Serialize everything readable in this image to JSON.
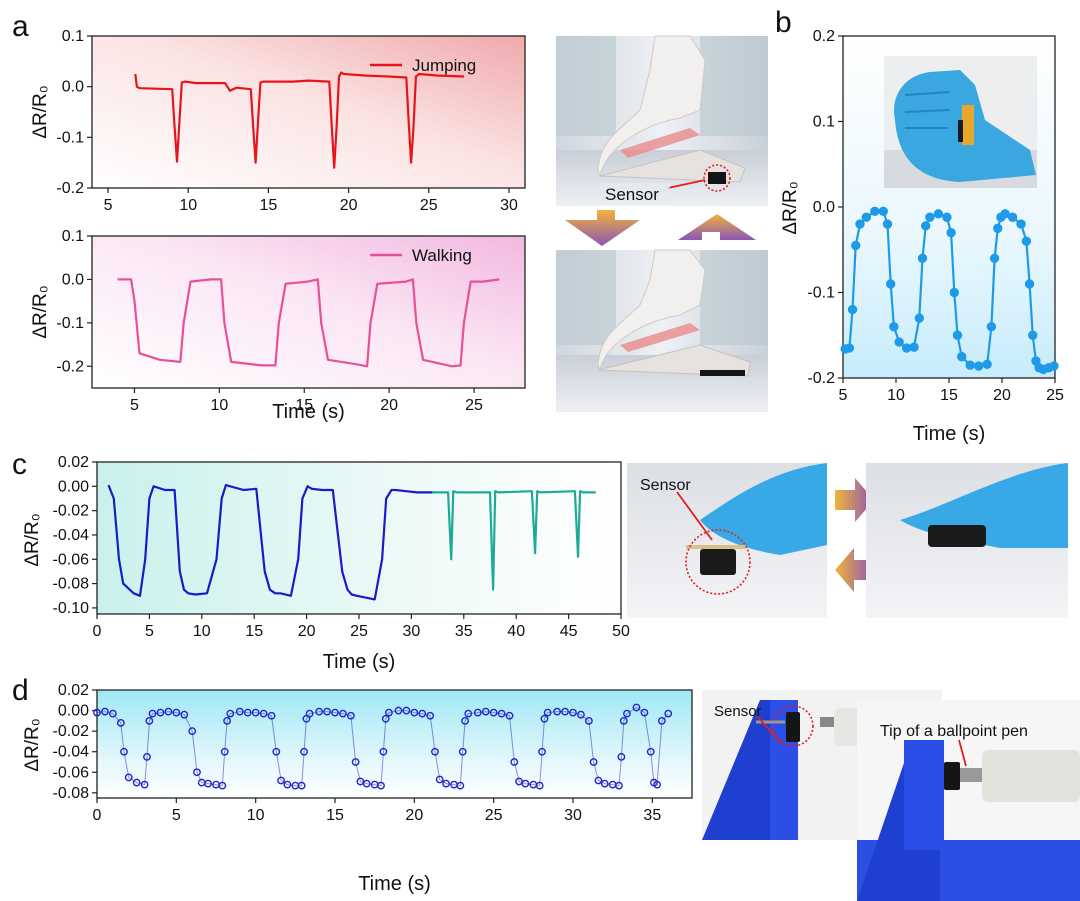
{
  "panels": {
    "a": {
      "letter": "a"
    },
    "b": {
      "letter": "b"
    },
    "c": {
      "letter": "c"
    },
    "d": {
      "letter": "d"
    }
  },
  "photo_labels": {
    "a_sensor": "Sensor",
    "c_sensor": "Sensor",
    "d_sensor": "Sensor",
    "d_pen": "Tip of a ballpoint pen"
  },
  "colors": {
    "jumping": "#e8141c",
    "walking": "#e8509a",
    "hand": "#1e9be8",
    "press": "#1a1ac8",
    "tap": "#1fa99a",
    "pen": "#2323c8"
  },
  "chart_data": [
    {
      "id": "a-top",
      "type": "line",
      "ylabel": "ΔR/R₀",
      "xlim": [
        4,
        31
      ],
      "ylim": [
        -0.2,
        0.1
      ],
      "xticks": [
        5,
        10,
        15,
        20,
        25,
        30
      ],
      "yticks": [
        0.1,
        0.0,
        -0.1,
        -0.2
      ],
      "ytick_labels": [
        "0.1",
        "0.0",
        "-0.1",
        "-0.2"
      ],
      "legend": [
        "Jumping"
      ],
      "series": [
        {
          "name": "Jumping",
          "color": "#e8141c",
          "x": [
            6.7,
            6.8,
            7.0,
            9.0,
            9.15,
            9.3,
            9.45,
            9.6,
            9.8,
            10.5,
            12.3,
            12.6,
            13.0,
            13.9,
            14.05,
            14.2,
            14.35,
            14.5,
            14.7,
            16.5,
            17.5,
            18.8,
            18.95,
            19.1,
            19.25,
            19.4,
            19.55,
            19.7,
            21.0,
            22.5,
            23.6,
            23.75,
            23.9,
            24.05,
            24.2,
            24.4,
            25.5,
            27.2
          ],
          "y": [
            0.025,
            0.0,
            -0.003,
            -0.005,
            -0.08,
            -0.148,
            -0.07,
            0.008,
            0.01,
            0.007,
            0.007,
            -0.008,
            -0.002,
            -0.005,
            -0.08,
            -0.15,
            -0.07,
            0.008,
            0.01,
            0.01,
            0.012,
            0.01,
            -0.08,
            -0.16,
            -0.08,
            0.02,
            0.028,
            0.025,
            0.022,
            0.02,
            0.018,
            -0.07,
            -0.15,
            -0.08,
            0.02,
            0.025,
            0.022,
            0.02
          ]
        }
      ]
    },
    {
      "id": "a-bottom",
      "type": "line",
      "xlabel": "Time (s)",
      "ylabel": "ΔR/R₀",
      "xlim": [
        2.5,
        28
      ],
      "ylim": [
        -0.25,
        0.1
      ],
      "xticks": [
        5,
        10,
        15,
        20,
        25
      ],
      "yticks": [
        0.1,
        0.0,
        -0.1,
        -0.2
      ],
      "ytick_labels": [
        "0.1",
        "0.0",
        "-0.1",
        "-0.2"
      ],
      "legend": [
        "Walking"
      ],
      "series": [
        {
          "name": "Walking",
          "color": "#e8509a",
          "x": [
            4.0,
            4.8,
            5.0,
            5.3,
            6.5,
            7.7,
            7.9,
            8.3,
            9.5,
            10.1,
            10.3,
            10.7,
            12.5,
            13.3,
            13.5,
            13.9,
            15.2,
            15.8,
            16.0,
            16.4,
            18.0,
            18.7,
            18.9,
            19.3,
            21.0,
            21.4,
            21.6,
            22.0,
            23.7,
            24.2,
            24.4,
            24.8,
            25.5,
            26.5
          ],
          "y": [
            0.0,
            0.0,
            -0.05,
            -0.17,
            -0.185,
            -0.19,
            -0.1,
            -0.005,
            0.0,
            0.0,
            -0.1,
            -0.19,
            -0.198,
            -0.198,
            -0.1,
            -0.01,
            -0.005,
            0.0,
            -0.1,
            -0.185,
            -0.195,
            -0.2,
            -0.1,
            -0.01,
            -0.005,
            0.0,
            -0.1,
            -0.185,
            -0.2,
            -0.198,
            -0.1,
            -0.005,
            -0.005,
            0.0
          ]
        }
      ]
    },
    {
      "id": "b",
      "type": "line",
      "xlabel": "Time (s)",
      "ylabel": "ΔR/R₀",
      "xlim": [
        5,
        25
      ],
      "ylim": [
        -0.2,
        0.2
      ],
      "xticks": [
        5,
        10,
        15,
        20,
        25
      ],
      "yticks": [
        0.2,
        0.1,
        0.0,
        -0.1,
        -0.2
      ],
      "ytick_labels": [
        "0.2",
        "0.1",
        "0.0",
        "-0.1",
        "-0.2"
      ],
      "series": [
        {
          "name": "",
          "color": "#1e9be8",
          "x": [
            5.2,
            5.6,
            5.9,
            6.2,
            6.6,
            7.2,
            8.0,
            8.8,
            9.2,
            9.5,
            9.8,
            10.3,
            11.0,
            11.7,
            12.2,
            12.5,
            12.8,
            13.2,
            14.0,
            14.8,
            15.2,
            15.5,
            15.8,
            16.2,
            17.0,
            17.8,
            18.6,
            19.0,
            19.3,
            19.6,
            19.9,
            20.3,
            21.0,
            21.8,
            22.3,
            22.6,
            22.9,
            23.2,
            23.5,
            23.9,
            24.4,
            24.9
          ],
          "y": [
            -0.166,
            -0.165,
            -0.12,
            -0.045,
            -0.02,
            -0.012,
            -0.005,
            -0.005,
            -0.02,
            -0.09,
            -0.14,
            -0.158,
            -0.165,
            -0.164,
            -0.13,
            -0.06,
            -0.022,
            -0.012,
            -0.008,
            -0.012,
            -0.03,
            -0.1,
            -0.15,
            -0.175,
            -0.185,
            -0.186,
            -0.184,
            -0.14,
            -0.06,
            -0.025,
            -0.012,
            -0.008,
            -0.012,
            -0.02,
            -0.04,
            -0.09,
            -0.15,
            -0.18,
            -0.188,
            -0.19,
            -0.188,
            -0.186
          ]
        }
      ]
    },
    {
      "id": "c",
      "type": "line",
      "xlabel": "Time (s)",
      "ylabel": "ΔR/R₀",
      "xlim": [
        0,
        50
      ],
      "ylim": [
        -0.105,
        0.02
      ],
      "xticks": [
        0,
        5,
        10,
        15,
        20,
        25,
        30,
        35,
        40,
        45,
        50
      ],
      "yticks": [
        0.02,
        0.0,
        -0.02,
        -0.04,
        -0.06,
        -0.08,
        -0.1
      ],
      "ytick_labels": [
        "0.02",
        "0.00",
        "-0.02",
        "-0.04",
        "-0.06",
        "-0.08",
        "-0.10"
      ],
      "series": [
        {
          "name": "",
          "color": "#1a1ac8",
          "x": [
            1.1,
            1.6,
            2.1,
            2.5,
            3.5,
            4.1,
            4.6,
            5.0,
            5.4,
            6.5,
            7.4,
            7.9,
            8.3,
            8.7,
            9.4,
            10.5,
            11.4,
            11.9,
            12.3,
            12.7,
            14.0,
            15.2,
            16.0,
            16.5,
            17.0,
            17.5,
            18.5,
            19.2,
            19.6,
            20.1,
            20.5,
            21.5,
            22.5,
            23.4,
            23.9,
            24.3,
            24.8,
            26.5,
            27.2,
            27.6,
            28.1,
            28.5,
            29.5,
            30.5,
            32.0
          ],
          "y": [
            0.001,
            -0.01,
            -0.06,
            -0.08,
            -0.088,
            -0.09,
            -0.06,
            -0.01,
            0.0,
            -0.003,
            -0.003,
            -0.07,
            -0.085,
            -0.088,
            -0.089,
            -0.088,
            -0.06,
            -0.01,
            0.001,
            0.0,
            -0.003,
            -0.002,
            -0.07,
            -0.085,
            -0.088,
            -0.088,
            -0.09,
            -0.06,
            -0.01,
            0.0,
            -0.002,
            -0.003,
            -0.003,
            -0.07,
            -0.085,
            -0.089,
            -0.09,
            -0.093,
            -0.06,
            -0.01,
            -0.003,
            -0.003,
            -0.004,
            -0.005,
            -0.005
          ]
        },
        {
          "name": "",
          "color": "#1fa99a",
          "x": [
            32.0,
            33.5,
            33.8,
            34.0,
            34.3,
            37.5,
            37.8,
            38.0,
            38.3,
            41.5,
            41.8,
            42.0,
            42.3,
            45.6,
            45.9,
            46.1,
            46.4,
            47.6
          ],
          "y": [
            -0.005,
            -0.005,
            -0.06,
            -0.004,
            -0.005,
            -0.005,
            -0.085,
            -0.004,
            -0.005,
            -0.004,
            -0.055,
            -0.004,
            -0.005,
            -0.004,
            -0.058,
            -0.004,
            -0.005,
            -0.005
          ]
        }
      ]
    },
    {
      "id": "d",
      "type": "scatter",
      "xlabel": "Time (s)",
      "ylabel": "ΔR/R₀",
      "xlim": [
        0,
        37.5
      ],
      "ylim": [
        -0.085,
        0.02
      ],
      "xticks": [
        0,
        5,
        10,
        15,
        20,
        25,
        30,
        35
      ],
      "yticks": [
        0.02,
        0.0,
        -0.02,
        -0.04,
        -0.06,
        -0.08
      ],
      "ytick_labels": [
        "0.02",
        "0.00",
        "-0.02",
        "-0.04",
        "-0.06",
        "-0.08"
      ],
      "series": [
        {
          "name": "",
          "color": "#2323c8",
          "x": [
            0.0,
            0.5,
            1.0,
            1.5,
            1.7,
            2.0,
            2.5,
            3.0,
            3.15,
            3.3,
            3.5,
            4.0,
            4.5,
            5.0,
            5.5,
            6.0,
            6.3,
            6.6,
            7.0,
            7.5,
            7.9,
            8.05,
            8.2,
            8.4,
            9.0,
            9.5,
            10.0,
            10.5,
            11.0,
            11.3,
            11.6,
            12.0,
            12.5,
            12.9,
            13.05,
            13.2,
            13.4,
            14.0,
            14.5,
            15.0,
            15.5,
            16.0,
            16.3,
            16.6,
            17.0,
            17.5,
            17.9,
            18.05,
            18.2,
            18.4,
            19.0,
            19.5,
            20.0,
            20.5,
            21.0,
            21.3,
            21.6,
            22.0,
            22.5,
            22.9,
            23.05,
            23.2,
            23.4,
            24.0,
            24.5,
            25.0,
            25.5,
            26.0,
            26.3,
            26.6,
            27.0,
            27.5,
            27.9,
            28.05,
            28.2,
            28.4,
            29.0,
            29.5,
            30.0,
            30.5,
            31.0,
            31.3,
            31.6,
            32.0,
            32.5,
            32.9,
            33.05,
            33.2,
            33.4,
            34.0,
            34.5,
            34.9,
            35.1,
            35.3,
            35.6,
            36.0
          ],
          "y": [
            -0.002,
            -0.001,
            -0.003,
            -0.012,
            -0.04,
            -0.065,
            -0.07,
            -0.072,
            -0.045,
            -0.01,
            -0.003,
            -0.002,
            -0.001,
            -0.002,
            -0.004,
            -0.02,
            -0.06,
            -0.07,
            -0.071,
            -0.072,
            -0.073,
            -0.04,
            -0.01,
            -0.003,
            -0.001,
            -0.002,
            -0.002,
            -0.003,
            -0.005,
            -0.04,
            -0.068,
            -0.072,
            -0.073,
            -0.073,
            -0.04,
            -0.008,
            -0.003,
            -0.001,
            -0.001,
            -0.002,
            -0.003,
            -0.005,
            -0.05,
            -0.069,
            -0.071,
            -0.072,
            -0.073,
            -0.04,
            -0.008,
            -0.002,
            0.0,
            0.0,
            -0.002,
            -0.003,
            -0.005,
            -0.04,
            -0.067,
            -0.071,
            -0.072,
            -0.073,
            -0.04,
            -0.01,
            -0.003,
            -0.002,
            -0.001,
            -0.002,
            -0.003,
            -0.005,
            -0.05,
            -0.069,
            -0.071,
            -0.072,
            -0.073,
            -0.04,
            -0.008,
            -0.002,
            -0.001,
            -0.001,
            -0.002,
            -0.004,
            -0.01,
            -0.05,
            -0.068,
            -0.071,
            -0.072,
            -0.073,
            -0.045,
            -0.01,
            -0.003,
            0.003,
            -0.002,
            -0.04,
            -0.07,
            -0.072,
            -0.01,
            -0.003
          ]
        }
      ]
    }
  ]
}
